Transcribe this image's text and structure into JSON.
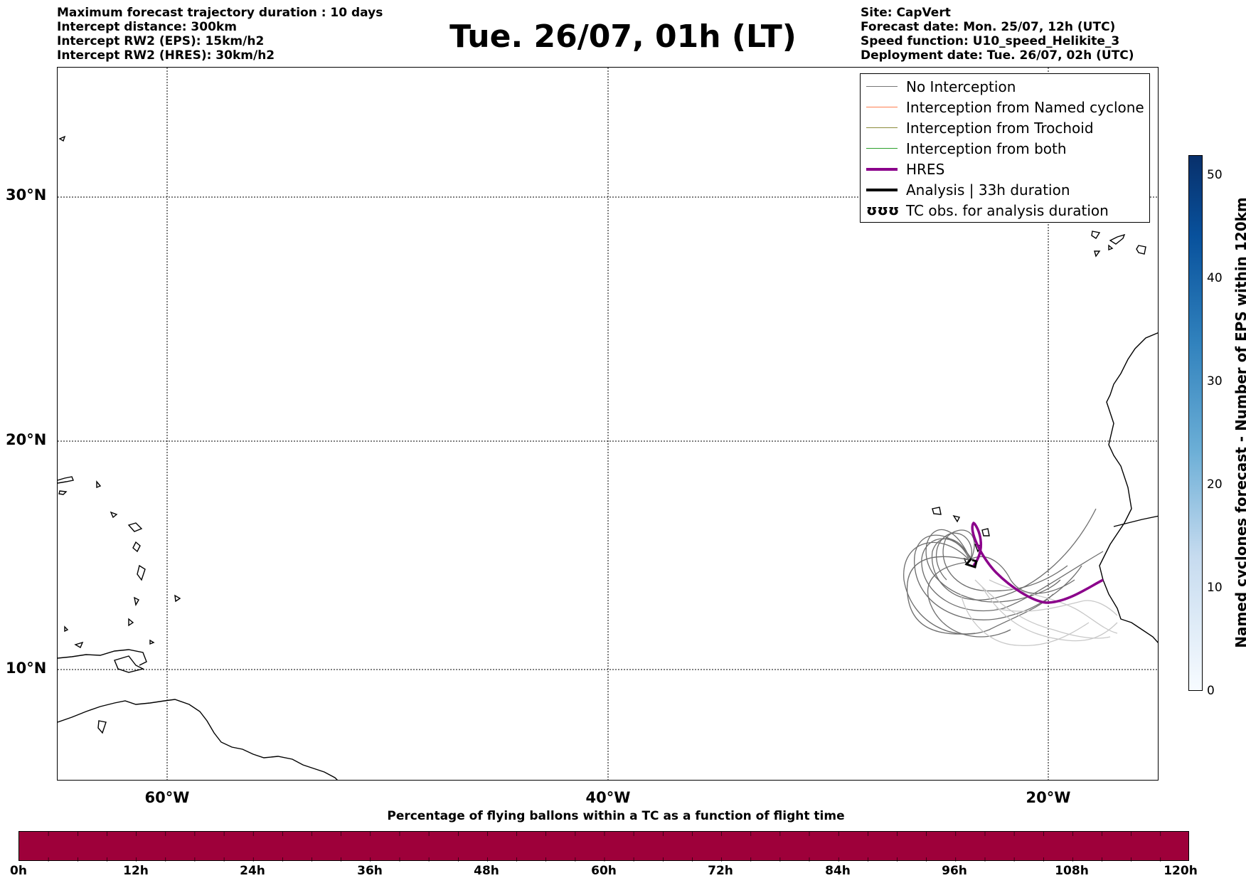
{
  "header_left": [
    "Maximum forecast trajectory duration : 10 days",
    "Intercept distance: 300km",
    "Intercept RW2 (EPS):  15km/h2",
    "Intercept RW2 (HRES): 30km/h2"
  ],
  "title": "Tue. 26/07, 01h (LT)",
  "header_right": [
    "Site: CapVert",
    "Forecast date: Mon. 25/07, 12h (UTC)",
    "Speed function: U10_speed_Helikite_3",
    "Deployment date: Tue. 26/07, 02h (UTC)"
  ],
  "lat_labels": [
    "30°N",
    "20°N",
    "10°N"
  ],
  "lon_labels": [
    "60°W",
    "40°W",
    "20°W"
  ],
  "legend": [
    {
      "label": "No Interception",
      "color": "#777777"
    },
    {
      "label": "Interception from Named cyclone",
      "color": "#ff7f50"
    },
    {
      "label": "Interception from Trochoid",
      "color": "#8b8b3a"
    },
    {
      "label": "Interception from both",
      "color": "#2ca02c"
    },
    {
      "label": "HRES",
      "color": "#8b008b"
    },
    {
      "label": "Analysis | 33h duration",
      "color": "#000000"
    },
    {
      "label": "TC obs. for analysis duration",
      "color": "#000000"
    }
  ],
  "legend_tc_symbol": "ʊʊʊ",
  "colorbar_vertical": {
    "label": "Named cyclones forecast - Number of EPS within 120km",
    "ticks": [
      "0",
      "10",
      "20",
      "30",
      "40",
      "50"
    ]
  },
  "colorbar_horizontal": {
    "title": "Percentage of flying ballons within a TC as a function of flight time",
    "ticks": [
      "0h",
      "12h",
      "24h",
      "36h",
      "48h",
      "60h",
      "72h",
      "84h",
      "96h",
      "108h",
      "120h"
    ],
    "fill_color": "#9e003a"
  }
}
